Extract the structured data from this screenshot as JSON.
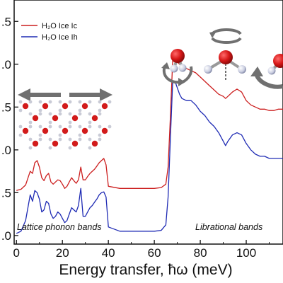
{
  "chart_data": {
    "type": "line",
    "title": "",
    "xlabel": "Energy transfer, ħω (meV)",
    "ylabel": "",
    "xlim": [
      -1,
      116
    ],
    "ylim": [
      -0.2,
      5.5
    ],
    "x_ticks": [
      0,
      20,
      40,
      60,
      80,
      100
    ],
    "x_tick_labels": [
      "0",
      "20",
      "40",
      "60",
      "80",
      "100"
    ],
    "y_ticks": [
      0,
      1,
      2,
      3,
      4,
      5
    ],
    "y_tick_labels": [
      ".0",
      ".5",
      ".0",
      ".5",
      ".0",
      ".5"
    ],
    "grid": false,
    "legend_position": "top-left",
    "series": [
      {
        "name": "H₂O Ice Ic",
        "color": "#cc1f1f",
        "x": [
          0,
          2,
          4,
          6,
          7,
          8,
          9,
          10,
          11,
          12,
          13,
          14,
          15,
          16,
          17,
          18,
          19,
          20,
          21,
          22,
          23,
          24,
          25,
          26,
          27,
          28,
          29,
          30,
          31,
          32,
          33,
          34,
          35,
          36,
          37,
          38,
          39,
          40,
          45,
          50,
          55,
          60,
          63,
          65,
          66,
          67,
          68,
          69,
          70,
          71,
          72,
          74,
          76,
          78,
          80,
          82,
          84,
          86,
          88,
          90,
          91,
          92,
          94,
          96,
          98,
          100,
          102,
          104,
          106,
          108,
          110,
          112,
          114,
          116
        ],
        "y": [
          1.05,
          1.08,
          1.18,
          1.5,
          1.45,
          1.7,
          1.75,
          1.6,
          1.35,
          1.28,
          1.4,
          1.45,
          1.25,
          1.2,
          1.25,
          1.3,
          1.28,
          1.2,
          1.1,
          1.15,
          1.25,
          1.35,
          1.28,
          1.22,
          1.3,
          1.6,
          1.3,
          1.3,
          1.38,
          1.45,
          1.5,
          1.55,
          1.62,
          1.7,
          1.75,
          1.8,
          1.65,
          1.15,
          1.1,
          1.1,
          1.1,
          1.1,
          1.12,
          1.2,
          1.6,
          2.8,
          4.1,
          4.2,
          4.05,
          4.0,
          3.95,
          3.9,
          3.85,
          3.8,
          3.7,
          3.6,
          3.5,
          3.4,
          3.3,
          3.25,
          3.2,
          3.25,
          3.35,
          3.42,
          3.35,
          3.15,
          3.05,
          3.0,
          2.95,
          2.95,
          2.92,
          2.92,
          2.95,
          2.95
        ]
      },
      {
        "name": "H₂O Ice Ih",
        "color": "#1f2bb4",
        "x": [
          0,
          2,
          4,
          6,
          7,
          8,
          9,
          10,
          11,
          12,
          13,
          14,
          15,
          16,
          17,
          18,
          19,
          20,
          21,
          22,
          23,
          24,
          25,
          26,
          27,
          28,
          29,
          30,
          31,
          32,
          33,
          34,
          35,
          36,
          37,
          38,
          39,
          40,
          45,
          50,
          55,
          60,
          63,
          65,
          66,
          67,
          68,
          69,
          70,
          71,
          72,
          74,
          76,
          78,
          80,
          82,
          84,
          86,
          88,
          90,
          91,
          92,
          94,
          96,
          98,
          100,
          102,
          104,
          106,
          108,
          110,
          112,
          114,
          116
        ],
        "y": [
          0.05,
          0.1,
          0.35,
          0.95,
          0.8,
          1.05,
          1.0,
          0.85,
          0.55,
          0.6,
          0.8,
          0.75,
          0.5,
          0.4,
          0.45,
          0.55,
          0.5,
          0.4,
          0.3,
          0.35,
          0.5,
          0.65,
          0.6,
          0.55,
          0.7,
          1.1,
          0.45,
          0.45,
          0.55,
          0.65,
          0.7,
          0.78,
          0.85,
          0.95,
          1.0,
          1.02,
          0.9,
          0.2,
          0.1,
          0.1,
          0.1,
          0.1,
          0.12,
          0.25,
          0.9,
          2.3,
          3.6,
          3.6,
          3.45,
          3.3,
          3.2,
          3.15,
          3.15,
          3.05,
          2.9,
          2.8,
          2.65,
          2.55,
          2.4,
          2.2,
          2.1,
          2.2,
          2.35,
          2.4,
          2.35,
          2.15,
          2.0,
          1.9,
          1.85,
          1.85,
          1.8,
          1.8,
          1.8,
          1.8
        ]
      }
    ],
    "annotations": {
      "left_band": "Lattice phonon bands",
      "right_band": "Librational bands"
    }
  }
}
